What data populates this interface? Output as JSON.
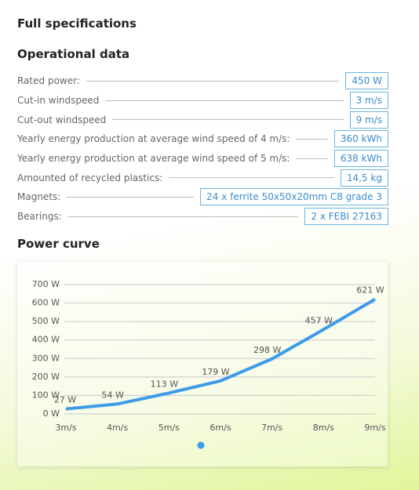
{
  "header": {
    "title": "Full specifications"
  },
  "operational": {
    "title": "Operational data",
    "rows": [
      {
        "label": "Rated power:",
        "value": "450 W"
      },
      {
        "label": "Cut-in windspeed",
        "value": "3 m/s"
      },
      {
        "label": "Cut-out windspeed",
        "value": "9 m/s"
      },
      {
        "label": "Yearly energy production at average wind speed of 4 m/s:",
        "value": "360 kWh"
      },
      {
        "label": "Yearly energy production at average wind speed of 5 m/s:",
        "value": "638 kWh"
      },
      {
        "label": "Amounted of recycled plastics:",
        "value": "14,5 kg"
      },
      {
        "label": "Magnets:",
        "value": "24 x ferrite 50x50x20mm C8 grade 3"
      },
      {
        "label": "Bearings:",
        "value": "2 x FEBI 27163"
      }
    ]
  },
  "chart_data": {
    "type": "line",
    "title": "Power curve",
    "categories": [
      "3m/s",
      "4m/s",
      "5m/s",
      "6m/s",
      "7m/s",
      "8m/s",
      "9m/s"
    ],
    "values": [
      27,
      54,
      113,
      179,
      298,
      457,
      621
    ],
    "value_labels": [
      "27 W",
      "54 W",
      "113 W",
      "179 W",
      "298 W",
      "457 W",
      "621 W"
    ],
    "color": "#3d9be9",
    "ylim": [
      0,
      700
    ],
    "yticks": [
      {
        "value": 0,
        "label": "0 W"
      },
      {
        "value": 100,
        "label": "100 W"
      },
      {
        "value": 200,
        "label": "200 W"
      },
      {
        "value": 300,
        "label": "300 W"
      },
      {
        "value": 400,
        "label": "400 W"
      },
      {
        "value": 500,
        "label": "500 W"
      },
      {
        "value": 600,
        "label": "600 W"
      },
      {
        "value": 700,
        "label": "700 W"
      }
    ],
    "grid": true
  }
}
